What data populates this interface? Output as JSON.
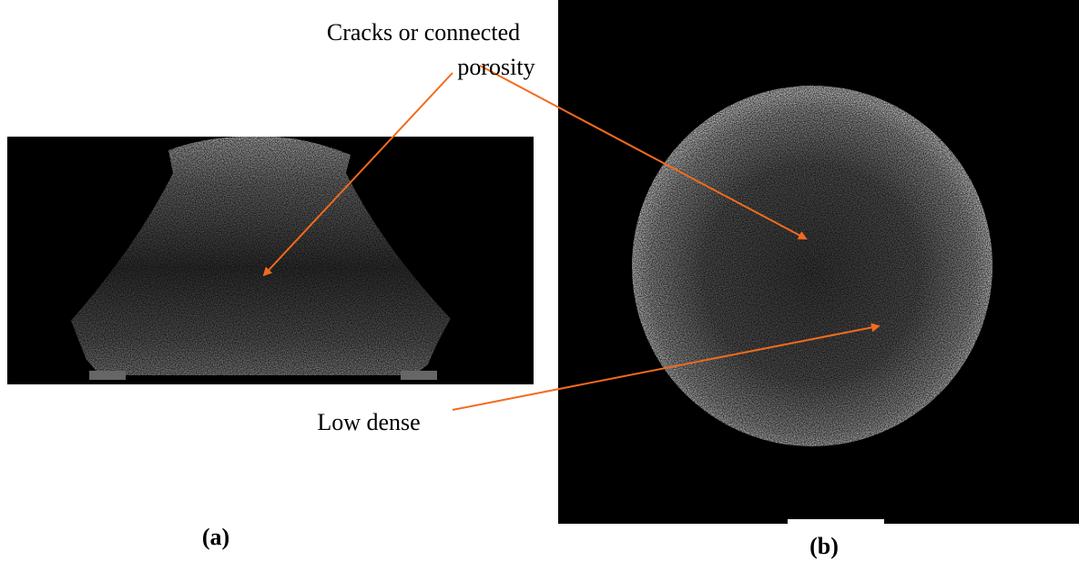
{
  "annotations": {
    "cracks": [
      "Cracks or connected",
      "porosity"
    ],
    "low_dense": "Low dense"
  },
  "panels": {
    "a": "(a)",
    "b": "(b)"
  }
}
